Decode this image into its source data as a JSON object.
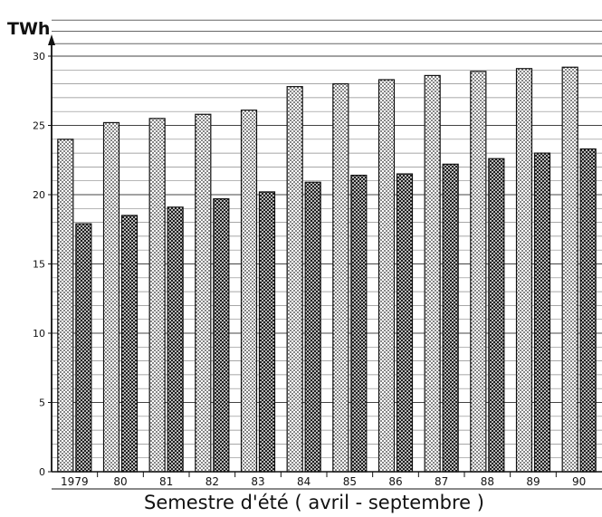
{
  "chart_data": {
    "type": "bar",
    "title": "",
    "ylabel": "TWh",
    "xlabel": "Semestre  d'été ( avril - septembre )",
    "categories": [
      "1979",
      "80",
      "81",
      "82",
      "83",
      "84",
      "85",
      "86",
      "87",
      "88",
      "89",
      "90"
    ],
    "series": [
      {
        "pattern": "dots",
        "values": [
          24.0,
          25.2,
          25.5,
          25.8,
          26.1,
          27.8,
          28.0,
          28.3,
          28.6,
          28.9,
          29.1,
          29.2
        ]
      },
      {
        "pattern": "crosshatch",
        "values": [
          17.9,
          18.5,
          19.1,
          19.7,
          20.2,
          20.9,
          21.4,
          21.5,
          22.2,
          22.6,
          23.0,
          23.3
        ]
      }
    ],
    "ylim": [
      0,
      30
    ],
    "yticks": [
      "0",
      "5",
      "10",
      "15",
      "20",
      "25",
      "30"
    ],
    "grid": "horizontal"
  }
}
